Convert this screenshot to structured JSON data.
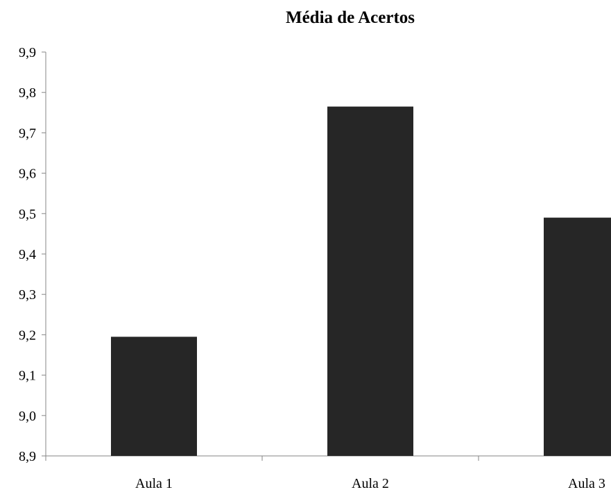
{
  "chart_data": {
    "type": "bar",
    "title": "Média de Acertos",
    "xlabel": "",
    "ylabel": "",
    "categories": [
      "Aula 1",
      "Aula 2",
      "Aula 3"
    ],
    "values": [
      9.195,
      9.765,
      9.49
    ],
    "ylim": [
      8.9,
      9.9
    ],
    "y_ticks": [
      "8,9",
      "9,0",
      "9,1",
      "9,2",
      "9,3",
      "9,4",
      "9,5",
      "9,6",
      "9,7",
      "9,8",
      "9,9"
    ],
    "grid": false,
    "legend": "none",
    "bar_color": "#262626",
    "axis_color": "#868686"
  }
}
